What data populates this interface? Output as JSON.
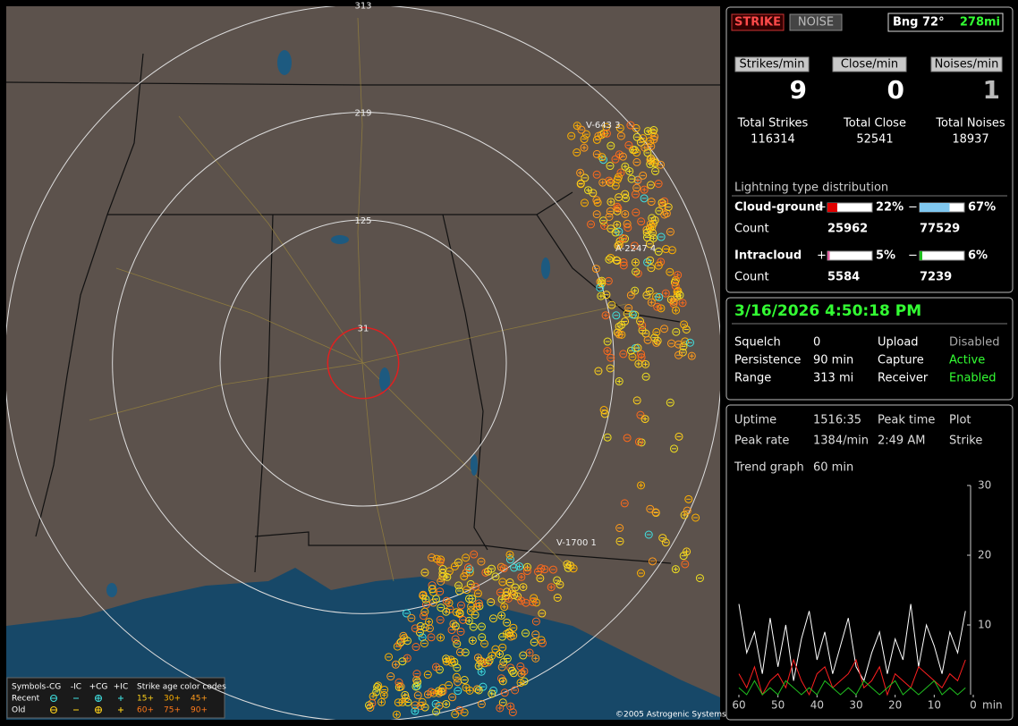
{
  "map": {
    "range_rings": [
      313,
      219,
      125,
      31
    ],
    "strike_labels": [
      "V-643 3",
      "A-2247 4",
      "V-1700 1"
    ],
    "copyright": "©2005 Astrogenic Systems",
    "legend": {
      "symbols": "Symbols",
      "types": [
        "-CG",
        "-IC",
        "+CG",
        "+IC"
      ],
      "age_title": "Strike age color codes",
      "rows": [
        "Recent",
        "Old"
      ],
      "recent_ages": [
        "15+",
        "30+",
        "45+"
      ],
      "old_ages": [
        "60+",
        "75+",
        "90+"
      ]
    }
  },
  "status": {
    "modes": [
      "STRIKE",
      "NOISE"
    ],
    "bearing": "Bng 72°",
    "distance": "278mi",
    "rates": [
      {
        "label": "Strikes/min",
        "value": 9
      },
      {
        "label": "Close/min",
        "value": 0
      },
      {
        "label": "Noises/min",
        "value": 1
      }
    ],
    "totals": [
      {
        "label": "Total Strikes",
        "value": 116314
      },
      {
        "label": "Total Close",
        "value": 52541
      },
      {
        "label": "Total Noises",
        "value": 18937
      }
    ],
    "distribution": {
      "title": "Lightning type distribution",
      "plus_sign": "+",
      "minus_sign": "−",
      "count_label": "Count",
      "rows": [
        {
          "label": "Cloud-ground",
          "plus": {
            "value": 22,
            "label": "22%"
          },
          "minus": {
            "value": 67,
            "label": "67%"
          },
          "plus_count": 25962,
          "minus_count": 77529
        },
        {
          "label": "Intracloud",
          "plus": {
            "value": 5,
            "label": "5%"
          },
          "minus": {
            "value": 6,
            "label": "6%"
          },
          "plus_count": 5584,
          "minus_count": 7239
        }
      ]
    }
  },
  "clock": {
    "datetime": "3/16/2026 4:50:18 PM",
    "rows": [
      [
        "Squelch",
        "0",
        "Upload",
        "Disabled"
      ],
      [
        "Persistence",
        "90 min",
        "Capture",
        "Active"
      ],
      [
        "Range",
        "313 mi",
        "Receiver",
        "Enabled"
      ]
    ]
  },
  "stats": {
    "rows": [
      [
        "Uptime",
        "1516:35",
        "Peak time",
        "Plot"
      ],
      [
        "Peak rate",
        "1384/min",
        "2:49 AM",
        "Strike"
      ],
      [
        "Trend graph",
        "60 min"
      ]
    ]
  },
  "trend_graph": {
    "type": "line",
    "xlim": [
      60,
      0
    ],
    "ylim": [
      0,
      30
    ],
    "yticks": [
      10,
      20,
      30
    ],
    "xticks": [
      60,
      50,
      40,
      30,
      20,
      10,
      0
    ],
    "x_unit": "min",
    "x": [
      60,
      58,
      56,
      54,
      52,
      50,
      48,
      46,
      44,
      42,
      40,
      38,
      36,
      34,
      32,
      30,
      28,
      26,
      24,
      22,
      20,
      18,
      16,
      14,
      12,
      10,
      8,
      6,
      4,
      2
    ],
    "series": [
      {
        "color": "#ffffff",
        "values": [
          13,
          6,
          9,
          3,
          11,
          4,
          10,
          2,
          8,
          12,
          5,
          9,
          3,
          7,
          11,
          4,
          2,
          6,
          9,
          3,
          8,
          5,
          13,
          4,
          10,
          7,
          3,
          9,
          6,
          12
        ]
      },
      {
        "color": "#ff2020",
        "values": [
          3,
          1,
          4,
          0,
          2,
          3,
          1,
          5,
          2,
          0,
          3,
          4,
          1,
          2,
          3,
          5,
          1,
          2,
          4,
          0,
          3,
          2,
          1,
          4,
          3,
          2,
          1,
          3,
          2,
          5
        ]
      },
      {
        "color": "#20c020",
        "values": [
          1,
          0,
          2,
          0,
          1,
          0,
          2,
          1,
          0,
          1,
          0,
          2,
          1,
          0,
          1,
          0,
          2,
          1,
          0,
          1,
          2,
          0,
          1,
          0,
          1,
          2,
          0,
          1,
          0,
          1
        ]
      }
    ]
  }
}
